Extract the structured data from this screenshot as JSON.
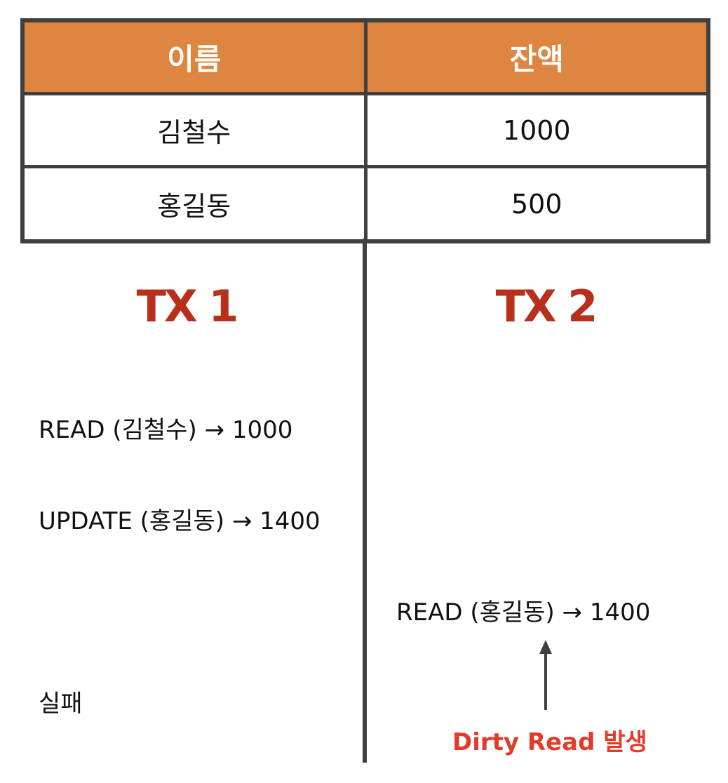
{
  "table": {
    "headers": [
      "이름",
      "잔액"
    ],
    "rows": [
      [
        "김철수",
        "1000"
      ],
      [
        "홍길동",
        "500"
      ]
    ]
  },
  "tx1": {
    "title": "TX 1",
    "steps": [
      "READ (김철수) → 1000",
      "UPDATE (홍길동) → 1400",
      "실패"
    ]
  },
  "tx2": {
    "title": "TX 2",
    "steps": [
      "READ (홍길동) → 1400"
    ]
  },
  "annotation": {
    "label": "Dirty Read 발생"
  },
  "colors": {
    "header_bg": "#de8640",
    "border": "#404040",
    "tx_title": "#b8301c",
    "annotation": "#e33b2a"
  }
}
